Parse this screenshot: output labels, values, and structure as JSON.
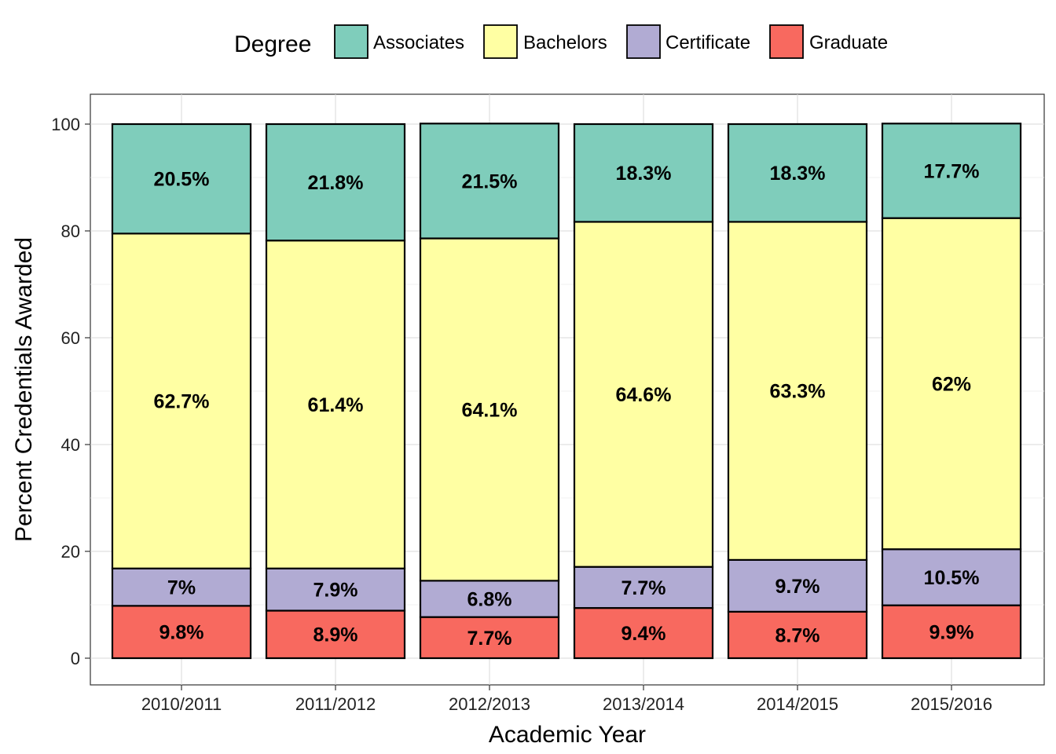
{
  "chart_data": {
    "type": "bar",
    "stacked": true,
    "xlabel": "Academic Year",
    "ylabel": "Percent Credentials Awarded",
    "ylim": [
      -5,
      105
    ],
    "yticks": [
      0,
      20,
      40,
      60,
      80,
      100
    ],
    "grid": true,
    "legend": {
      "title": "Degree",
      "position": "top"
    },
    "categories": [
      "2010/2011",
      "2011/2012",
      "2012/2013",
      "2013/2014",
      "2014/2015",
      "2015/2016"
    ],
    "stack_order": [
      "Graduate",
      "Certificate",
      "Bachelors",
      "Associates"
    ],
    "series": [
      {
        "name": "Associates",
        "color": "#7fcdbb",
        "values": [
          20.5,
          21.8,
          21.5,
          18.3,
          18.3,
          17.7
        ],
        "labels": [
          "20.5%",
          "21.8%",
          "21.5%",
          "18.3%",
          "18.3%",
          "17.7%"
        ]
      },
      {
        "name": "Bachelors",
        "color": "#ffffa3",
        "values": [
          62.7,
          61.4,
          64.1,
          64.6,
          63.3,
          62
        ],
        "labels": [
          "62.7%",
          "61.4%",
          "64.1%",
          "64.6%",
          "63.3%",
          "62%"
        ]
      },
      {
        "name": "Certificate",
        "color": "#b1abd3",
        "values": [
          7,
          7.9,
          6.8,
          7.7,
          9.7,
          10.5
        ],
        "labels": [
          "7%",
          "7.9%",
          "6.8%",
          "7.7%",
          "9.7%",
          "10.5%"
        ]
      },
      {
        "name": "Graduate",
        "color": "#f8695f",
        "values": [
          9.8,
          8.9,
          7.7,
          9.4,
          8.7,
          9.9
        ],
        "labels": [
          "9.8%",
          "8.9%",
          "7.7%",
          "9.4%",
          "8.7%",
          "9.9%"
        ]
      }
    ]
  }
}
